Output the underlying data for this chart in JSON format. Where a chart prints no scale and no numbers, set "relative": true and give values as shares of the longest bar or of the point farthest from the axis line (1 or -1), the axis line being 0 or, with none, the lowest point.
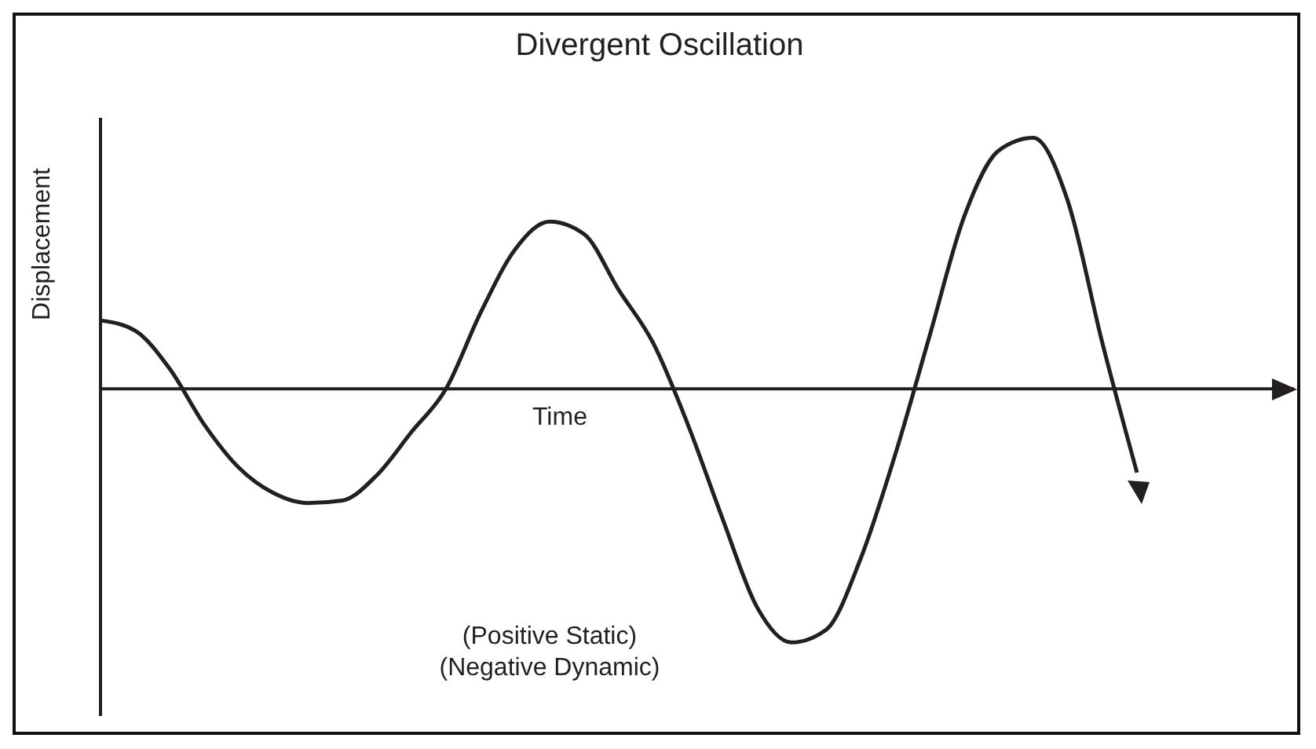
{
  "chart_data": {
    "type": "line",
    "title": "Divergent Oscillation",
    "xlabel": "Time",
    "ylabel": "Displacement",
    "relative": true,
    "categories": [
      null,
      null,
      null,
      null,
      null,
      null,
      null,
      null,
      null,
      null,
      null,
      null,
      null,
      null,
      null,
      null,
      null,
      null,
      null,
      null,
      null,
      null,
      null,
      null,
      null,
      null,
      null,
      null,
      null,
      null,
      null
    ],
    "series": [
      {
        "color": "#231f20",
        "values": [
          0.27,
          0.23,
          0.08,
          -0.14,
          -0.31,
          -0.41,
          -0.45,
          -0.44,
          -0.34,
          -0.17,
          0,
          0.3,
          0.55,
          0.66,
          0.61,
          0.39,
          0.18,
          -0.14,
          -0.51,
          -0.86,
          -1,
          -0.95,
          -0.67,
          -0.26,
          0.21,
          0.68,
          0.94,
          0.99,
          0.74,
          0.18,
          -0.33
        ]
      }
    ],
    "annotations": [
      "(Positive Static)",
      "(Negative Dynamic)"
    ],
    "grid": false,
    "legend": false,
    "marker": "none",
    "line_style": "solid"
  }
}
